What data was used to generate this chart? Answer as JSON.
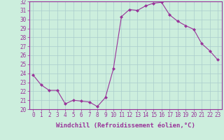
{
  "x": [
    0,
    1,
    2,
    3,
    4,
    5,
    6,
    7,
    8,
    9,
    10,
    11,
    12,
    13,
    14,
    15,
    16,
    17,
    18,
    19,
    20,
    21,
    22,
    23
  ],
  "y": [
    23.8,
    22.7,
    22.1,
    22.1,
    20.6,
    21.0,
    20.9,
    20.8,
    20.3,
    21.3,
    24.5,
    30.3,
    31.1,
    31.0,
    31.5,
    31.8,
    31.9,
    30.5,
    29.8,
    29.3,
    28.9,
    27.3,
    26.5,
    25.5
  ],
  "line_color": "#993399",
  "marker": "D",
  "marker_size": 2.5,
  "bg_color": "#cceedd",
  "grid_color": "#aacccc",
  "xlabel": "Windchill (Refroidissement éolien,°C)",
  "xlabel_fontsize": 6.5,
  "tick_fontsize": 5.5,
  "ylim": [
    20,
    32
  ],
  "xlim": [
    -0.5,
    23.5
  ],
  "yticks": [
    20,
    21,
    22,
    23,
    24,
    25,
    26,
    27,
    28,
    29,
    30,
    31,
    32
  ],
  "xticks": [
    0,
    1,
    2,
    3,
    4,
    5,
    6,
    7,
    8,
    9,
    10,
    11,
    12,
    13,
    14,
    15,
    16,
    17,
    18,
    19,
    20,
    21,
    22,
    23
  ]
}
